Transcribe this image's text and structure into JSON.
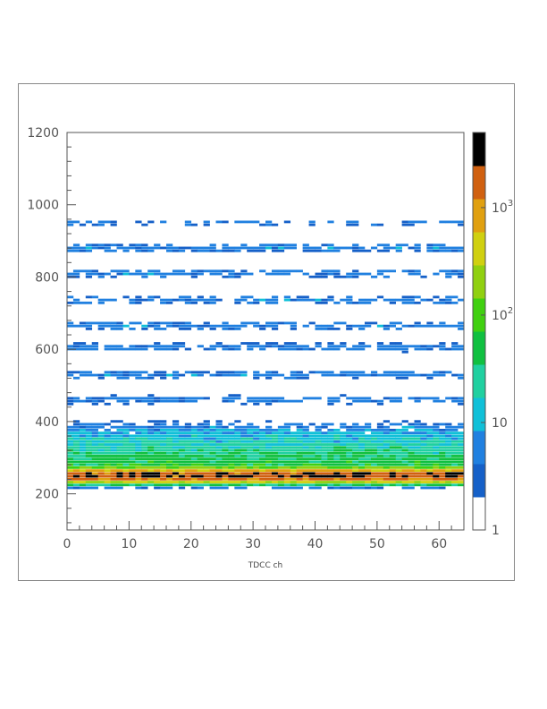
{
  "chart_data": {
    "type": "heatmap",
    "title": "",
    "xlabel": "TDCC ch",
    "ylabel": "",
    "xlim": [
      0,
      64
    ],
    "ylim": [
      100,
      1200
    ],
    "x_ticks": [
      "0",
      "10",
      "20",
      "30",
      "40",
      "50",
      "60"
    ],
    "x_tick_values": [
      0,
      10,
      20,
      30,
      40,
      50,
      60
    ],
    "y_ticks": [
      "200",
      "400",
      "600",
      "800",
      "1000",
      "1200"
    ],
    "y_tick_values": [
      200,
      400,
      600,
      800,
      1000,
      1200
    ],
    "grid": false,
    "colorbar": {
      "scale": "log",
      "range": [
        1,
        5000
      ],
      "labels": [
        "1",
        "10",
        "10^2",
        "10^3"
      ],
      "label_values": [
        1,
        10,
        100,
        1000
      ],
      "colors": [
        "#ffffff",
        "#1560c8",
        "#2080e0",
        "#10c0d8",
        "#20d0a0",
        "#10c040",
        "#40d010",
        "#90d010",
        "#d0d010",
        "#e0a010",
        "#d06010",
        "#000000"
      ]
    },
    "bands": [
      {
        "y": 250,
        "peak_count": 3000,
        "width_y": 12,
        "ch_min": 0,
        "ch_max": 64
      },
      {
        "y": 285,
        "peak_count": 40,
        "width_y": 40,
        "ch_min": 0,
        "ch_max": 64
      },
      {
        "y": 350,
        "peak_count": 8,
        "width_y": 40,
        "ch_min": 0,
        "ch_max": 64
      },
      {
        "y": 460,
        "peak_count": 4,
        "width_y": 12,
        "ch_min": 0,
        "ch_max": 64
      },
      {
        "y": 530,
        "peak_count": 4,
        "width_y": 12,
        "ch_min": 0,
        "ch_max": 64
      },
      {
        "y": 605,
        "peak_count": 4,
        "width_y": 12,
        "ch_min": 0,
        "ch_max": 64
      },
      {
        "y": 665,
        "peak_count": 4,
        "width_y": 12,
        "ch_min": 0,
        "ch_max": 64
      },
      {
        "y": 735,
        "peak_count": 4,
        "width_y": 12,
        "ch_min": 0,
        "ch_max": 64
      },
      {
        "y": 810,
        "peak_count": 4,
        "width_y": 12,
        "ch_min": 0,
        "ch_max": 64
      },
      {
        "y": 880,
        "peak_count": 4,
        "width_y": 12,
        "ch_min": 0,
        "ch_max": 64
      },
      {
        "y": 950,
        "peak_count": 3,
        "width_y": 10,
        "ch_min": 0,
        "ch_max": 64
      }
    ]
  }
}
